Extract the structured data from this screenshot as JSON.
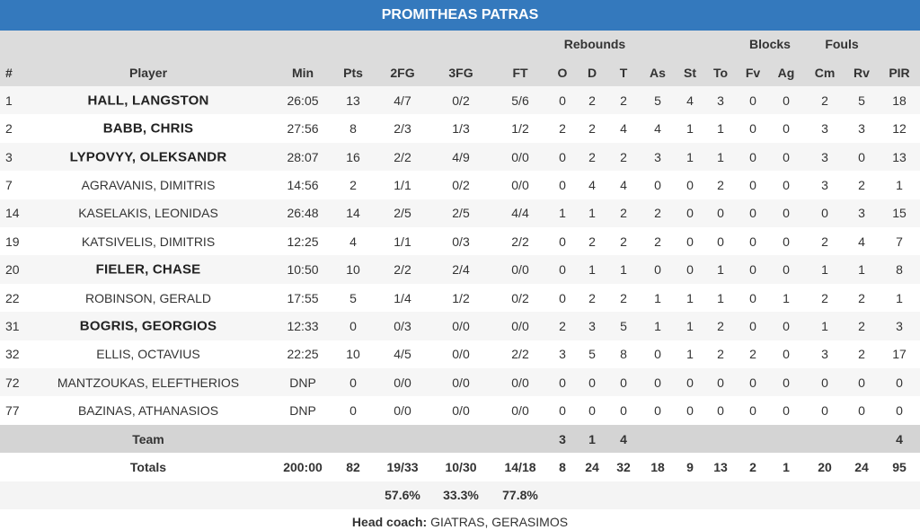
{
  "title": "PROMITHEAS PATRAS",
  "group_headers": {
    "rebounds": "Rebounds",
    "blocks": "Blocks",
    "fouls": "Fouls"
  },
  "columns": [
    "#",
    "Player",
    "Min",
    "Pts",
    "2FG",
    "3FG",
    "FT",
    "O",
    "D",
    "T",
    "As",
    "St",
    "To",
    "Fv",
    "Ag",
    "Cm",
    "Rv",
    "PIR"
  ],
  "rows": [
    {
      "starter": true,
      "cells": [
        1,
        "HALL, LANGSTON",
        "26:05",
        13,
        "4/7",
        "0/2",
        "5/6",
        0,
        2,
        2,
        5,
        4,
        3,
        0,
        0,
        2,
        5,
        18
      ]
    },
    {
      "starter": true,
      "cells": [
        2,
        "BABB, CHRIS",
        "27:56",
        8,
        "2/3",
        "1/3",
        "1/2",
        2,
        2,
        4,
        4,
        1,
        1,
        0,
        0,
        3,
        3,
        12
      ]
    },
    {
      "starter": true,
      "cells": [
        3,
        "LYPOVYY, OLEKSANDR",
        "28:07",
        16,
        "2/2",
        "4/9",
        "0/0",
        0,
        2,
        2,
        3,
        1,
        1,
        0,
        0,
        3,
        0,
        13
      ]
    },
    {
      "starter": false,
      "cells": [
        7,
        "AGRAVANIS, DIMITRIS",
        "14:56",
        2,
        "1/1",
        "0/2",
        "0/0",
        0,
        4,
        4,
        0,
        0,
        2,
        0,
        0,
        3,
        2,
        1
      ]
    },
    {
      "starter": false,
      "cells": [
        14,
        "KASELAKIS, LEONIDAS",
        "26:48",
        14,
        "2/5",
        "2/5",
        "4/4",
        1,
        1,
        2,
        2,
        0,
        0,
        0,
        0,
        0,
        3,
        15
      ]
    },
    {
      "starter": false,
      "cells": [
        19,
        "KATSIVELIS, DIMITRIS",
        "12:25",
        4,
        "1/1",
        "0/3",
        "2/2",
        0,
        2,
        2,
        2,
        0,
        0,
        0,
        0,
        2,
        4,
        7
      ]
    },
    {
      "starter": true,
      "cells": [
        20,
        "FIELER, CHASE",
        "10:50",
        10,
        "2/2",
        "2/4",
        "0/0",
        0,
        1,
        1,
        0,
        0,
        1,
        0,
        0,
        1,
        1,
        8
      ]
    },
    {
      "starter": false,
      "cells": [
        22,
        "ROBINSON, GERALD",
        "17:55",
        5,
        "1/4",
        "1/2",
        "0/2",
        0,
        2,
        2,
        1,
        1,
        1,
        0,
        1,
        2,
        2,
        1
      ]
    },
    {
      "starter": true,
      "cells": [
        31,
        "BOGRIS, GEORGIOS",
        "12:33",
        0,
        "0/3",
        "0/0",
        "0/0",
        2,
        3,
        5,
        1,
        1,
        2,
        0,
        0,
        1,
        2,
        3
      ]
    },
    {
      "starter": false,
      "cells": [
        32,
        "ELLIS, OCTAVIUS",
        "22:25",
        10,
        "4/5",
        "0/0",
        "2/2",
        3,
        5,
        8,
        0,
        1,
        2,
        2,
        0,
        3,
        2,
        17
      ]
    },
    {
      "starter": false,
      "cells": [
        72,
        "MANTZOUKAS, ELEFTHERIOS",
        "DNP",
        0,
        "0/0",
        "0/0",
        "0/0",
        0,
        0,
        0,
        0,
        0,
        0,
        0,
        0,
        0,
        0,
        0
      ]
    },
    {
      "starter": false,
      "cells": [
        77,
        "BAZINAS, ATHANASIOS",
        "DNP",
        0,
        "0/0",
        "0/0",
        "0/0",
        0,
        0,
        0,
        0,
        0,
        0,
        0,
        0,
        0,
        0,
        0
      ]
    }
  ],
  "team": {
    "label": "Team",
    "rebounds": [
      3,
      1,
      4
    ],
    "pir": 4
  },
  "totals": {
    "label": "Totals",
    "values": [
      "200:00",
      82,
      "19/33",
      "10/30",
      "14/18",
      8,
      24,
      32,
      18,
      9,
      13,
      2,
      1,
      20,
      24,
      95
    ]
  },
  "shooting_pct": [
    "57.6%",
    "33.3%",
    "77.8%"
  ],
  "head_coach": {
    "label": "Head coach:",
    "name": "GIATRAS, GERASIMOS"
  }
}
